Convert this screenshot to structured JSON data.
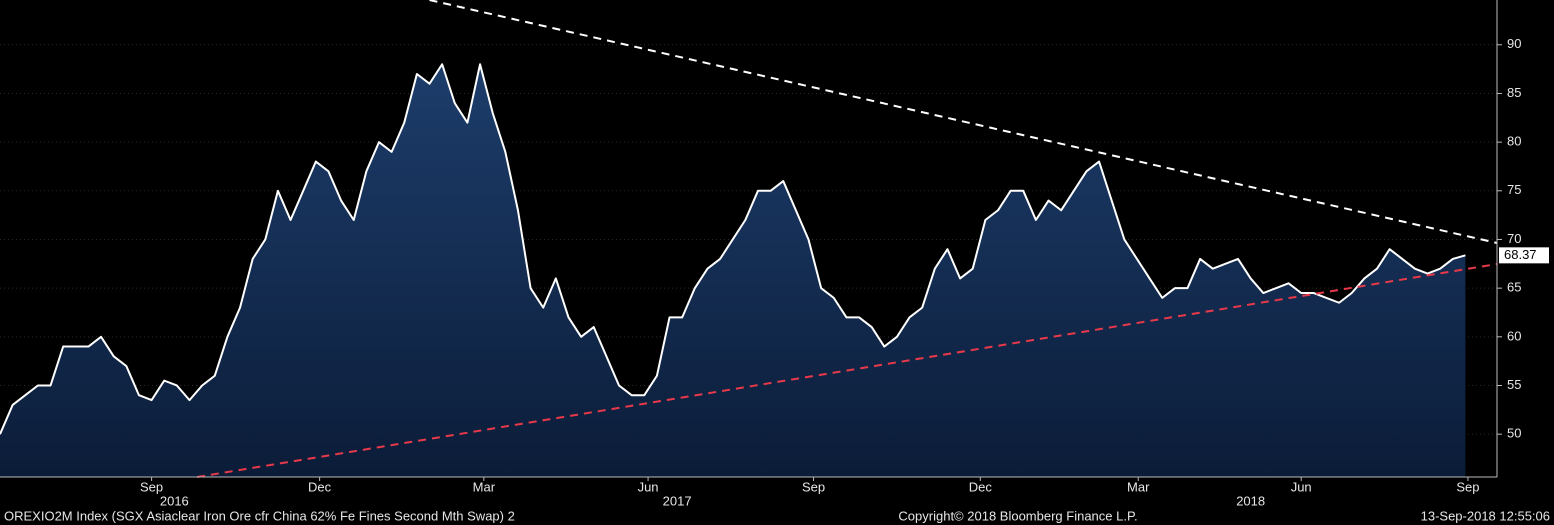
{
  "chart_data": {
    "type": "line",
    "title": "OREXIO2M Index (SGX Asiaclear Iron Ore cfr China 62% Fe Fines Second Mth Swap) 2",
    "copyright": "Copyright© 2018 Bloomberg Finance L.P.",
    "timestamp": "13-Sep-2018 12:55:06",
    "series": [
      {
        "name": "OREXIO2M Index",
        "color": "#ffffff",
        "fill": "#14305a",
        "values": [
          50,
          53,
          54,
          55,
          55,
          59,
          59,
          59,
          60,
          58,
          57,
          54,
          53.5,
          55.5,
          55,
          53.5,
          55,
          56,
          60,
          63,
          68,
          70,
          75,
          72,
          75,
          78,
          77,
          74,
          72,
          77,
          80,
          79,
          82,
          87,
          86,
          88,
          84,
          82,
          88,
          83,
          79,
          73,
          65,
          63,
          66,
          62,
          60,
          61,
          58,
          55,
          54,
          54,
          56,
          62,
          62,
          65,
          67,
          68,
          70,
          72,
          75,
          75,
          76,
          73,
          70,
          65,
          64,
          62,
          62,
          61,
          59,
          60,
          62,
          63,
          67,
          69,
          66,
          67,
          72,
          73,
          75,
          75,
          72,
          74,
          73,
          75,
          77,
          78,
          74,
          70,
          68,
          66,
          64,
          65,
          65,
          68,
          67,
          67.5,
          68,
          66,
          64.5,
          65,
          65.5,
          64.5,
          64.5,
          64,
          63.5,
          64.5,
          66,
          67,
          69,
          68,
          67,
          66.5,
          67,
          68,
          68.37
        ]
      }
    ],
    "xlim": [
      0,
      118.5
    ],
    "xticks": [
      {
        "value": 12,
        "label": "Sep"
      },
      {
        "value": 25.3,
        "label": "Dec"
      },
      {
        "value": 38.3,
        "label": "Mar"
      },
      {
        "value": 51.3,
        "label": "Jun"
      },
      {
        "value": 64.4,
        "label": "Sep"
      },
      {
        "value": 77.6,
        "label": "Dec"
      },
      {
        "value": 90.1,
        "label": "Mar"
      },
      {
        "value": 103,
        "label": "Jun"
      },
      {
        "value": 116.2,
        "label": "Sep"
      }
    ],
    "year_ticks": [
      {
        "value": 13.8,
        "label": "2016"
      },
      {
        "value": 53.6,
        "label": "2017"
      },
      {
        "value": 99,
        "label": "2018"
      }
    ],
    "ylim": [
      45.6,
      94.6
    ],
    "yticks": [
      50,
      55,
      60,
      65,
      70,
      75,
      80,
      85,
      90
    ],
    "trendlines": [
      {
        "color": "#ffffff",
        "x": [
          34,
          118.5
        ],
        "values": [
          94.6,
          69.64
        ]
      },
      {
        "color": "#e8394a",
        "x": [
          15.6,
          118.5
        ],
        "values": [
          45.6,
          67.48
        ]
      }
    ]
  }
}
